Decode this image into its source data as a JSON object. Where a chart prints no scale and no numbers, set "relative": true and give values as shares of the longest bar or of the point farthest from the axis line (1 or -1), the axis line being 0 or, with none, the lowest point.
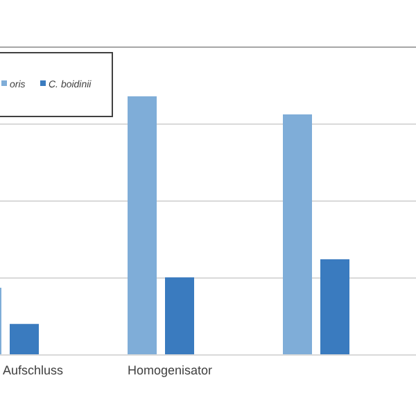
{
  "chart_data": {
    "type": "bar",
    "categories": [
      "Aufschluss",
      "Homogenisator",
      null
    ],
    "relative": true,
    "grid": "y",
    "legend": "top left",
    "series": [
      {
        "name": "oris",
        "color": "#7fadd8",
        "values": [
          0.26,
          1,
          0.93
        ]
      },
      {
        "name": "C. boidinii",
        "color": "#3a7bbf",
        "values": [
          0.12,
          0.3,
          0.37
        ]
      }
    ]
  }
}
